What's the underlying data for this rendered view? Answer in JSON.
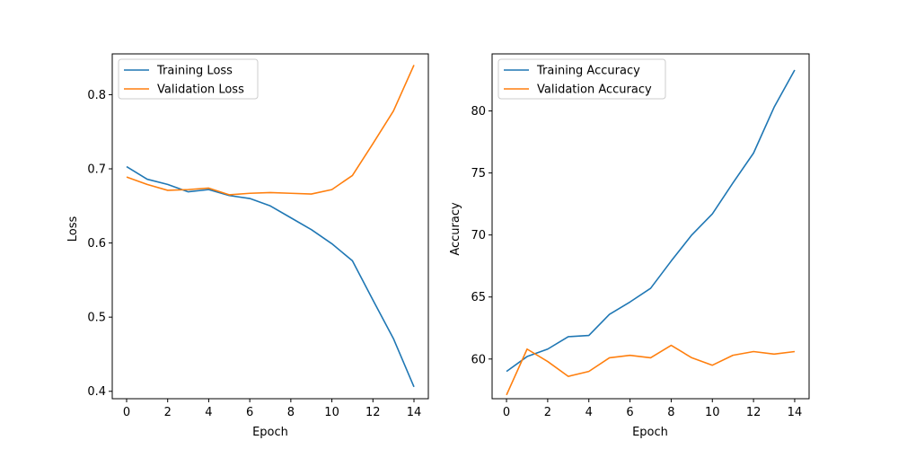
{
  "chart_data": [
    {
      "type": "line",
      "title": "",
      "xlabel": "Epoch",
      "ylabel": "Loss",
      "x": [
        0,
        1,
        2,
        3,
        4,
        5,
        6,
        7,
        8,
        9,
        10,
        11,
        12,
        13,
        14
      ],
      "xlim": [
        -0.7,
        14.7
      ],
      "ylim": [
        0.39,
        0.855
      ],
      "xticks": [
        0,
        2,
        4,
        6,
        8,
        10,
        12,
        14
      ],
      "yticks": [
        0.4,
        0.5,
        0.6,
        0.7,
        0.8
      ],
      "ytick_labels": [
        "0.4",
        "0.5",
        "0.6",
        "0.7",
        "0.8"
      ],
      "legend_position": "upper-left",
      "series": [
        {
          "name": "Training Loss",
          "color": "#1f77b4",
          "values": [
            0.703,
            0.686,
            0.679,
            0.669,
            0.672,
            0.664,
            0.66,
            0.65,
            0.634,
            0.618,
            0.599,
            0.576,
            0.523,
            0.471,
            0.406
          ]
        },
        {
          "name": "Validation Loss",
          "color": "#ff7f0e",
          "values": [
            0.689,
            0.679,
            0.671,
            0.672,
            0.674,
            0.665,
            0.667,
            0.668,
            0.667,
            0.666,
            0.672,
            0.691,
            0.734,
            0.778,
            0.84
          ]
        }
      ]
    },
    {
      "type": "line",
      "title": "",
      "xlabel": "Epoch",
      "ylabel": "Accuracy",
      "x": [
        0,
        1,
        2,
        3,
        4,
        5,
        6,
        7,
        8,
        9,
        10,
        11,
        12,
        13,
        14
      ],
      "xlim": [
        -0.7,
        14.7
      ],
      "ylim": [
        56.8,
        84.6
      ],
      "xticks": [
        0,
        2,
        4,
        6,
        8,
        10,
        12,
        14
      ],
      "yticks": [
        60,
        65,
        70,
        75,
        80
      ],
      "ytick_labels": [
        "60",
        "65",
        "70",
        "75",
        "80"
      ],
      "legend_position": "upper-left",
      "series": [
        {
          "name": "Training Accuracy",
          "color": "#1f77b4",
          "values": [
            59.0,
            60.2,
            60.8,
            61.8,
            61.9,
            63.6,
            64.6,
            65.7,
            67.9,
            70.0,
            71.7,
            74.2,
            76.6,
            80.3,
            83.3
          ]
        },
        {
          "name": "Validation Accuracy",
          "color": "#ff7f0e",
          "values": [
            57.1,
            60.8,
            59.8,
            58.6,
            59.0,
            60.1,
            60.3,
            60.1,
            61.1,
            60.1,
            59.5,
            60.3,
            60.6,
            60.4,
            60.6
          ]
        }
      ]
    }
  ]
}
